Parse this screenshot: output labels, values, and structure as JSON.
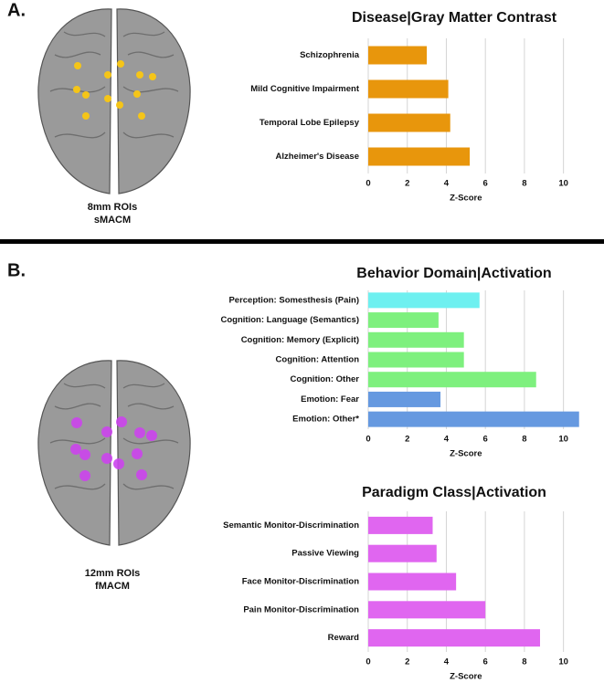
{
  "panels": [
    {
      "label": "A.",
      "caption": [
        "8mm ROIs",
        "sMACM"
      ]
    },
    {
      "label": "B.",
      "caption": [
        "12mm ROIs",
        "fMACM"
      ]
    }
  ],
  "chart_data": [
    {
      "type": "bar",
      "orientation": "horizontal",
      "title": "Disease|Gray Matter Contrast",
      "xlabel": "Z-Score",
      "categories": [
        "Schizophrenia",
        "Mild Cognitive Impairment",
        "Temporal Lobe Epilepsy",
        "Alzheimer's Disease"
      ],
      "values": [
        3.0,
        4.1,
        4.2,
        5.2
      ],
      "color": "#e8960c",
      "xlim": [
        0,
        11
      ],
      "xticks": [
        0,
        2,
        4,
        6,
        8,
        10
      ],
      "grid": true
    },
    {
      "type": "bar",
      "orientation": "horizontal",
      "title": "Behavior Domain|Activation",
      "xlabel": "Z-Score",
      "categories": [
        "Perception: Somesthesis (Pain)",
        "Cognition: Language (Semantics)",
        "Cognition: Memory (Explicit)",
        "Cognition: Attention",
        "Cognition: Other",
        "Emotion: Fear",
        "Emotion: Other*"
      ],
      "values": [
        5.7,
        3.6,
        4.9,
        4.9,
        8.6,
        3.7,
        10.8
      ],
      "colors": [
        "#6ef0f0",
        "#7ef07e",
        "#7ef07e",
        "#7ef07e",
        "#7ef07e",
        "#6699e0",
        "#6699e0"
      ],
      "xlim": [
        0,
        11
      ],
      "xticks": [
        0,
        2,
        4,
        6,
        8,
        10
      ],
      "grid": true
    },
    {
      "type": "bar",
      "orientation": "horizontal",
      "title": "Paradigm Class|Activation",
      "xlabel": "Z-Score",
      "categories": [
        "Semantic Monitor-Discrimination",
        "Passive Viewing",
        "Face Monitor-Discrimination",
        "Pain Monitor-Discrimination",
        "Reward"
      ],
      "values": [
        3.3,
        3.5,
        4.5,
        6.0,
        8.8
      ],
      "color": "#e066f0",
      "xlim": [
        0,
        11
      ],
      "xticks": [
        0,
        2,
        4,
        6,
        8,
        10
      ],
      "grid": true
    }
  ]
}
